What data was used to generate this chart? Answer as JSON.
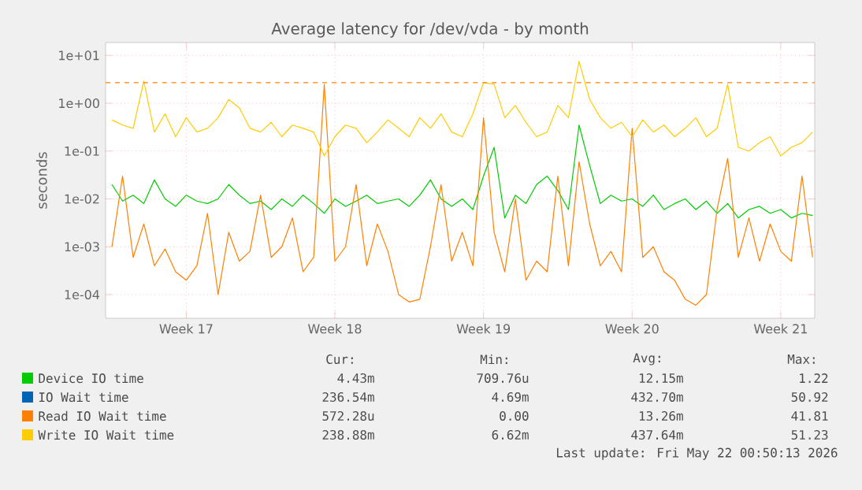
{
  "chart_data": {
    "type": "line",
    "title": "Average latency for /dev/vda - by month",
    "ylabel": "seconds",
    "log": "y",
    "grid": true,
    "legend": "bottom",
    "ylim": [
      3.2e-05,
      18.6
    ],
    "categories": [
      null,
      null,
      null,
      null,
      null,
      null,
      null,
      "Week 17",
      null,
      null,
      null,
      null,
      null,
      null,
      null,
      null,
      null,
      null,
      null,
      null,
      null,
      "Week 18",
      null,
      null,
      null,
      null,
      null,
      null,
      null,
      null,
      null,
      null,
      null,
      null,
      null,
      "Week 19",
      null,
      null,
      null,
      null,
      null,
      null,
      null,
      null,
      null,
      null,
      null,
      null,
      null,
      "Week 20",
      null,
      null,
      null,
      null,
      null,
      null,
      null,
      null,
      null,
      null,
      null,
      null,
      null,
      "Week 21",
      null,
      null,
      null
    ],
    "yticks": [
      {
        "value": 0.0001,
        "label": "1e-04"
      },
      {
        "value": 0.001,
        "label": "1e-03"
      },
      {
        "value": 0.01,
        "label": "1e-02"
      },
      {
        "value": 0.1,
        "label": "1e-01"
      },
      {
        "value": 1,
        "label": "1e+00"
      },
      {
        "value": 10,
        "label": "1e+01"
      }
    ],
    "series": [
      {
        "name": "Device IO time",
        "color": "#00cc00",
        "values": [
          0.02,
          0.009,
          0.012,
          0.008,
          0.025,
          0.01,
          0.007,
          0.012,
          0.009,
          0.008,
          0.01,
          0.02,
          0.012,
          0.008,
          0.009,
          0.006,
          0.01,
          0.007,
          0.012,
          0.008,
          0.005,
          0.01,
          0.007,
          0.009,
          0.012,
          0.008,
          0.009,
          0.01,
          0.007,
          0.012,
          0.025,
          0.01,
          0.007,
          0.01,
          0.006,
          0.03,
          0.12,
          0.004,
          0.012,
          0.008,
          0.02,
          0.03,
          0.015,
          0.006,
          0.35,
          0.05,
          0.008,
          0.012,
          0.009,
          0.01,
          0.007,
          0.012,
          0.006,
          0.008,
          0.01,
          0.006,
          0.009,
          0.005,
          0.008,
          0.004,
          0.006,
          0.007,
          0.005,
          0.006,
          0.004,
          0.005,
          0.0045
        ]
      },
      {
        "name": "IO Wait time",
        "color": "#0066b3",
        "values": [
          null,
          null,
          null,
          null,
          null,
          null,
          null,
          null,
          null,
          null,
          null,
          null,
          null,
          null,
          null,
          null,
          null,
          null,
          null,
          null,
          null,
          null,
          null,
          null,
          null,
          null,
          null,
          null,
          null,
          null,
          null,
          null,
          null,
          null,
          null,
          null,
          null,
          null,
          null,
          null,
          null,
          null,
          null,
          null,
          null,
          null,
          null,
          null,
          null,
          null,
          null,
          null,
          null,
          null,
          null,
          null,
          null,
          null,
          null,
          null,
          null,
          null,
          null,
          null,
          null,
          null,
          null
        ]
      },
      {
        "name": "Read IO Wait time",
        "color": "#ff8000",
        "values": [
          0.001,
          0.03,
          0.0006,
          0.003,
          0.0004,
          0.0009,
          0.0003,
          0.0002,
          0.0004,
          0.005,
          0.0001,
          0.002,
          0.0005,
          0.0008,
          0.012,
          0.0006,
          0.001,
          0.004,
          0.0003,
          0.0006,
          2.5,
          0.0005,
          0.001,
          0.02,
          0.0004,
          0.003,
          0.0008,
          0.0001,
          7e-05,
          8e-05,
          0.001,
          0.02,
          0.0005,
          0.002,
          0.0004,
          0.5,
          0.002,
          0.0003,
          0.01,
          0.0002,
          0.0005,
          0.0003,
          0.03,
          0.0004,
          0.06,
          0.003,
          0.0004,
          0.0008,
          0.0003,
          0.3,
          0.0006,
          0.001,
          0.0003,
          0.0002,
          8e-05,
          6e-05,
          0.0001,
          0.006,
          0.07,
          0.0006,
          0.004,
          0.0005,
          0.003,
          0.0008,
          0.0005,
          0.03,
          0.0006
        ]
      },
      {
        "name": "Write IO Wait time",
        "color": "#ffcc00",
        "values": [
          0.45,
          0.35,
          0.3,
          2.9,
          0.25,
          0.6,
          0.2,
          0.5,
          0.25,
          0.3,
          0.5,
          1.2,
          0.8,
          0.3,
          0.25,
          0.4,
          0.2,
          0.35,
          0.3,
          0.25,
          0.08,
          0.2,
          0.35,
          0.3,
          0.15,
          0.25,
          0.45,
          0.3,
          0.2,
          0.5,
          0.3,
          0.6,
          0.25,
          0.2,
          0.6,
          2.7,
          2.5,
          0.5,
          0.9,
          0.4,
          0.2,
          0.25,
          0.9,
          0.5,
          7.5,
          1.2,
          0.5,
          0.3,
          0.4,
          0.2,
          0.45,
          0.25,
          0.35,
          0.2,
          0.3,
          0.5,
          0.2,
          0.3,
          2.5,
          0.12,
          0.1,
          0.15,
          0.2,
          0.08,
          0.12,
          0.15,
          0.25
        ]
      }
    ],
    "ref_lines": [
      {
        "axis": "y",
        "value": 2.7,
        "color": "#ff8000",
        "line_style": "dashed"
      }
    ],
    "annotations": [
      "Cur:",
      "Min:",
      "Avg:",
      "Max:",
      "4.43m",
      "709.76u",
      "12.15m",
      "1.22",
      "236.54m",
      "4.69m",
      "432.70m",
      "50.92",
      "572.28u",
      "0.00",
      "13.26m",
      "41.81",
      "238.88m",
      "6.62m",
      "437.64m",
      "51.23",
      "Last update: Fri May 22 00:50:13 2026"
    ]
  }
}
